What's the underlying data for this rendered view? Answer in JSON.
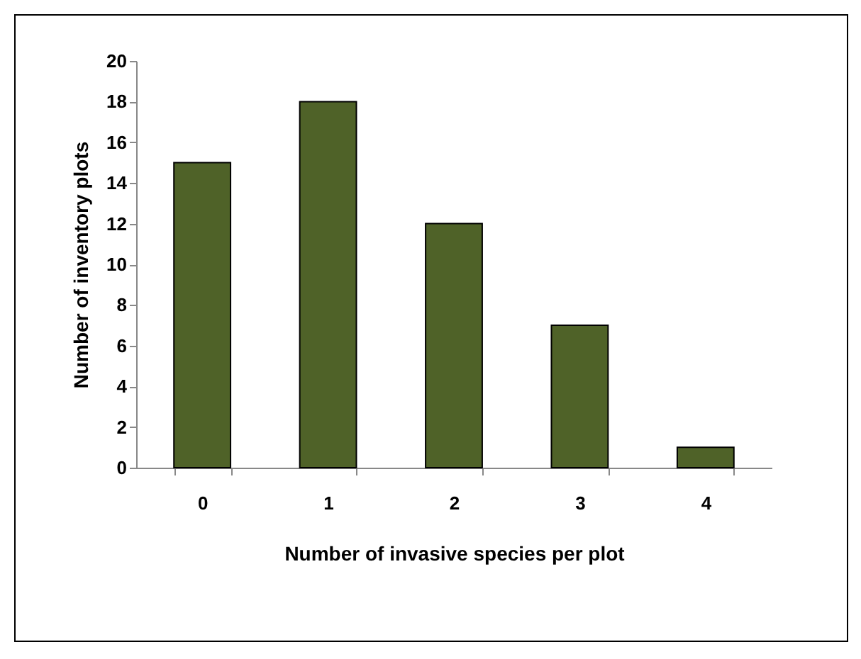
{
  "chart_data": {
    "type": "bar",
    "xlabel": "Number of invasive species per plot",
    "ylabel": "Number of inventory plots",
    "categories": [
      "0",
      "1",
      "2",
      "3",
      "4"
    ],
    "values": [
      15,
      18,
      12,
      7,
      1
    ],
    "color": "#4f6228",
    "ylim": [
      0,
      20
    ],
    "yticks": [
      0,
      2,
      4,
      6,
      8,
      10,
      12,
      14,
      16,
      18,
      20
    ],
    "grid": false
  }
}
